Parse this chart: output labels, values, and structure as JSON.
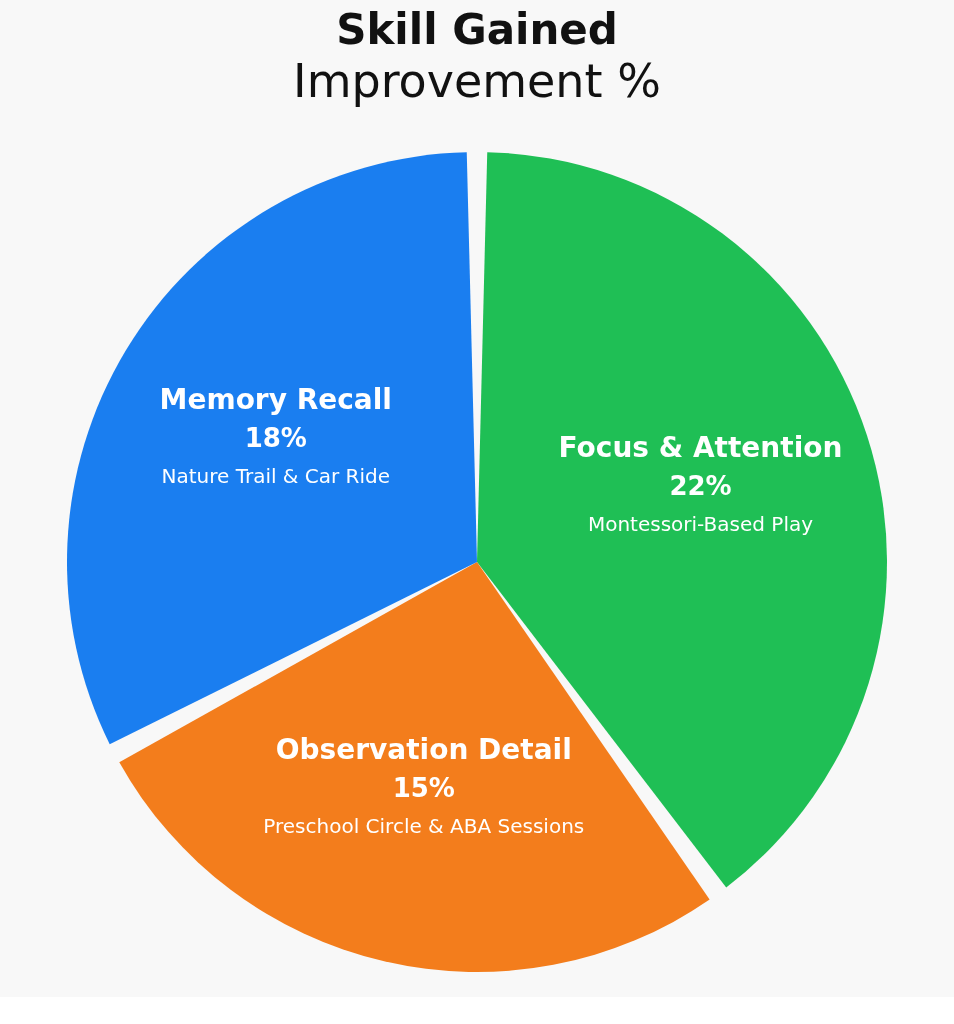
{
  "chart_data": {
    "type": "pie",
    "title": "Skill Gained",
    "subtitle": "Improvement %",
    "categories": [
      "Focus & Attention",
      "Observation Detail",
      "Memory Recall"
    ],
    "values": [
      22,
      15,
      18
    ],
    "colors": [
      "#1fbf55",
      "#f37d1c",
      "#1a7ef0"
    ],
    "value_labels": [
      "22%",
      "15%",
      "18%"
    ],
    "annotations": [
      "Montessori-Based Play",
      "Preschool Circle & ABA Sessions",
      "Nature Trail & Car Ride"
    ],
    "legend": false
  }
}
